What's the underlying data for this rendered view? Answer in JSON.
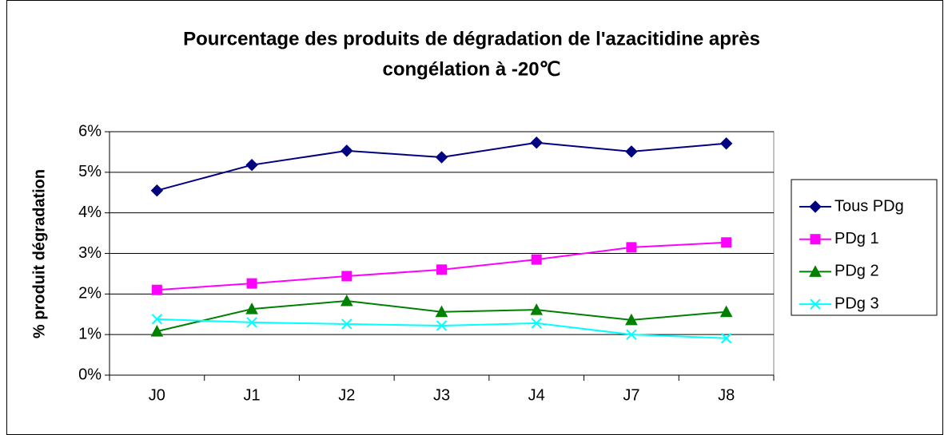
{
  "chart_data": {
    "type": "line",
    "title": [
      "Pourcentage des produits de dégradation de l'azacitidine après",
      "congélation à -20℃"
    ],
    "ylabel": "% produit dégradation",
    "categories": [
      "J0",
      "J1",
      "J2",
      "J3",
      "J4",
      "J7",
      "J8"
    ],
    "series": [
      {
        "name": "Tous PDg",
        "color": "#000080",
        "marker": "diamond",
        "values": [
          4.55,
          5.18,
          5.53,
          5.37,
          5.73,
          5.51,
          5.71
        ]
      },
      {
        "name": "PDg 1",
        "color": "#ff00ff",
        "marker": "square",
        "values": [
          2.1,
          2.26,
          2.44,
          2.6,
          2.85,
          3.15,
          3.27
        ]
      },
      {
        "name": "PDg 2",
        "color": "#008000",
        "marker": "triangle",
        "values": [
          1.08,
          1.63,
          1.83,
          1.56,
          1.61,
          1.36,
          1.56
        ]
      },
      {
        "name": "PDg 3",
        "color": "#00ffff",
        "marker": "x",
        "values": [
          1.38,
          1.3,
          1.26,
          1.22,
          1.28,
          1.0,
          0.91
        ]
      }
    ],
    "ylim": [
      0,
      6
    ],
    "yticks": [
      {
        "value": 0,
        "label": "0%"
      },
      {
        "value": 1,
        "label": "1%"
      },
      {
        "value": 2,
        "label": "2%"
      },
      {
        "value": 3,
        "label": "3%"
      },
      {
        "value": 4,
        "label": "4%"
      },
      {
        "value": 5,
        "label": "5%"
      },
      {
        "value": 6,
        "label": "6%"
      }
    ],
    "grid": true,
    "legend": "right"
  }
}
